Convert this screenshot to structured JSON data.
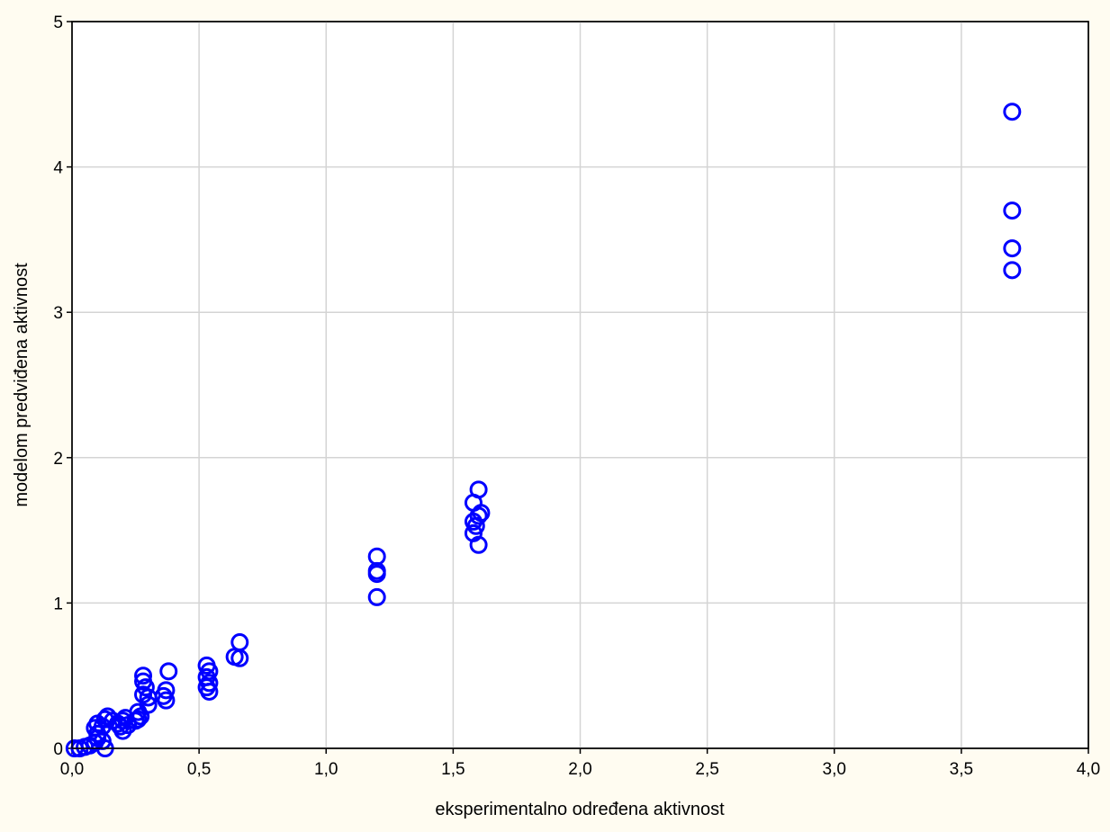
{
  "chart_data": {
    "type": "scatter",
    "xlabel": "eksperimentalno određena aktivnost",
    "ylabel": "modelom predviđena aktivnost",
    "xlim": [
      0,
      4
    ],
    "ylim": [
      0,
      5
    ],
    "x_ticks": [
      0,
      0.5,
      1,
      1.5,
      2,
      2.5,
      3,
      3.5,
      4
    ],
    "x_tick_labels": [
      "0,0",
      "0,5",
      "1,0",
      "1,5",
      "2,0",
      "2,5",
      "3,0",
      "3,5",
      "4,0"
    ],
    "y_ticks": [
      0,
      1,
      2,
      3,
      4,
      5
    ],
    "y_tick_labels": [
      "0",
      "1",
      "2",
      "3",
      "4",
      "5"
    ],
    "grid": true,
    "marker": "circle-open",
    "marker_color": "#0000ff",
    "points": [
      {
        "x": 3.7,
        "y": 4.38
      },
      {
        "x": 3.7,
        "y": 3.7
      },
      {
        "x": 3.7,
        "y": 3.44
      },
      {
        "x": 3.7,
        "y": 3.29
      },
      {
        "x": 1.6,
        "y": 1.78
      },
      {
        "x": 1.58,
        "y": 1.69
      },
      {
        "x": 1.61,
        "y": 1.62
      },
      {
        "x": 1.6,
        "y": 1.6
      },
      {
        "x": 1.58,
        "y": 1.56
      },
      {
        "x": 1.59,
        "y": 1.53
      },
      {
        "x": 1.58,
        "y": 1.48
      },
      {
        "x": 1.6,
        "y": 1.4
      },
      {
        "x": 1.2,
        "y": 1.32
      },
      {
        "x": 1.2,
        "y": 1.22
      },
      {
        "x": 1.2,
        "y": 1.2
      },
      {
        "x": 1.2,
        "y": 1.04
      },
      {
        "x": 0.66,
        "y": 0.73
      },
      {
        "x": 0.64,
        "y": 0.63
      },
      {
        "x": 0.66,
        "y": 0.62
      },
      {
        "x": 0.53,
        "y": 0.57
      },
      {
        "x": 0.54,
        "y": 0.53
      },
      {
        "x": 0.53,
        "y": 0.49
      },
      {
        "x": 0.54,
        "y": 0.45
      },
      {
        "x": 0.53,
        "y": 0.42
      },
      {
        "x": 0.54,
        "y": 0.39
      },
      {
        "x": 0.38,
        "y": 0.53
      },
      {
        "x": 0.37,
        "y": 0.4
      },
      {
        "x": 0.36,
        "y": 0.36
      },
      {
        "x": 0.37,
        "y": 0.33
      },
      {
        "x": 0.28,
        "y": 0.5
      },
      {
        "x": 0.28,
        "y": 0.46
      },
      {
        "x": 0.29,
        "y": 0.42
      },
      {
        "x": 0.28,
        "y": 0.37
      },
      {
        "x": 0.3,
        "y": 0.35
      },
      {
        "x": 0.3,
        "y": 0.3
      },
      {
        "x": 0.26,
        "y": 0.25
      },
      {
        "x": 0.27,
        "y": 0.22
      },
      {
        "x": 0.26,
        "y": 0.2
      },
      {
        "x": 0.25,
        "y": 0.19
      },
      {
        "x": 0.21,
        "y": 0.21
      },
      {
        "x": 0.2,
        "y": 0.19
      },
      {
        "x": 0.22,
        "y": 0.16
      },
      {
        "x": 0.19,
        "y": 0.15
      },
      {
        "x": 0.2,
        "y": 0.12
      },
      {
        "x": 0.16,
        "y": 0.19
      },
      {
        "x": 0.18,
        "y": 0.17
      },
      {
        "x": 0.14,
        "y": 0.22
      },
      {
        "x": 0.13,
        "y": 0.2
      },
      {
        "x": 0.12,
        "y": 0.15
      },
      {
        "x": 0.1,
        "y": 0.17
      },
      {
        "x": 0.09,
        "y": 0.14
      },
      {
        "x": 0.1,
        "y": 0.1
      },
      {
        "x": 0.1,
        "y": 0.07
      },
      {
        "x": 0.09,
        "y": 0.04
      },
      {
        "x": 0.12,
        "y": 0.05
      },
      {
        "x": 0.13,
        "y": 0.0
      },
      {
        "x": 0.07,
        "y": 0.02
      },
      {
        "x": 0.05,
        "y": 0.01
      },
      {
        "x": 0.03,
        "y": 0.0
      },
      {
        "x": 0.01,
        "y": 0.0
      }
    ]
  }
}
